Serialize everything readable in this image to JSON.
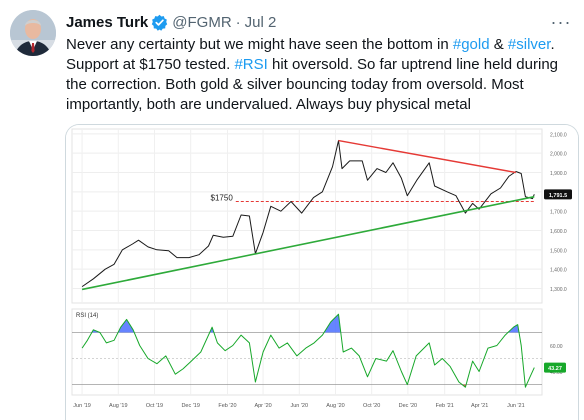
{
  "tweet": {
    "author_name": "James Turk",
    "handle": "@FGMR",
    "separator": "·",
    "date": "Jul 2",
    "more_label": "···",
    "text": [
      {
        "t": "Never any certainty but we might have seen the bottom in ",
        "ht": false
      },
      {
        "t": "#gold",
        "ht": true
      },
      {
        "t": " & ",
        "ht": false
      },
      {
        "t": "#silver",
        "ht": true
      },
      {
        "t": ". Support at $1750 tested. ",
        "ht": false
      },
      {
        "t": "#RSI",
        "ht": true
      },
      {
        "t": " hit oversold. So far uptrend line held during the correction. Both gold & silver bouncing today from oversold. Most importantly, both are undervalued. Always buy physical metal",
        "ht": false
      }
    ]
  },
  "colors": {
    "hashtag": "#1d9bf0",
    "price_line": "#1a1a1a",
    "downtrend": "#e53935",
    "uptrend": "#2eaa3a",
    "support": "#e53935",
    "rsi_line": "#17a82a",
    "rsi_fill": "#4b6fff",
    "rsi_oversold": "#e53935"
  },
  "chart_data": [
    {
      "type": "line",
      "series": [
        {
          "name": "",
          "points": [
            [
              "2019-06-01",
              1310
            ],
            [
              "2019-06-20",
              1350
            ],
            [
              "2019-07-10",
              1400
            ],
            [
              "2019-07-25",
              1425
            ],
            [
              "2019-08-08",
              1500
            ],
            [
              "2019-08-25",
              1530
            ],
            [
              "2019-09-04",
              1550
            ],
            [
              "2019-09-20",
              1515
            ],
            [
              "2019-10-05",
              1500
            ],
            [
              "2019-10-25",
              1495
            ],
            [
              "2019-11-08",
              1460
            ],
            [
              "2019-11-28",
              1460
            ],
            [
              "2019-12-15",
              1475
            ],
            [
              "2019-12-31",
              1520
            ],
            [
              "2020-01-08",
              1575
            ],
            [
              "2020-01-25",
              1565
            ],
            [
              "2020-02-10",
              1570
            ],
            [
              "2020-02-24",
              1680
            ],
            [
              "2020-03-09",
              1675
            ],
            [
              "2020-03-19",
              1480
            ],
            [
              "2020-04-01",
              1590
            ],
            [
              "2020-04-14",
              1725
            ],
            [
              "2020-05-01",
              1700
            ],
            [
              "2020-05-18",
              1750
            ],
            [
              "2020-06-05",
              1690
            ],
            [
              "2020-06-25",
              1770
            ],
            [
              "2020-07-10",
              1800
            ],
            [
              "2020-07-27",
              1930
            ],
            [
              "2020-08-06",
              2065
            ],
            [
              "2020-08-12",
              1920
            ],
            [
              "2020-08-25",
              1960
            ],
            [
              "2020-09-15",
              1960
            ],
            [
              "2020-09-24",
              1860
            ],
            [
              "2020-10-10",
              1920
            ],
            [
              "2020-10-25",
              1900
            ],
            [
              "2020-11-06",
              1950
            ],
            [
              "2020-11-20",
              1870
            ],
            [
              "2020-11-30",
              1780
            ],
            [
              "2020-12-16",
              1860
            ],
            [
              "2021-01-06",
              1950
            ],
            [
              "2021-01-15",
              1830
            ],
            [
              "2021-02-05",
              1800
            ],
            [
              "2021-02-20",
              1780
            ],
            [
              "2021-03-08",
              1690
            ],
            [
              "2021-03-20",
              1740
            ],
            [
              "2021-03-31",
              1710
            ],
            [
              "2021-04-20",
              1790
            ],
            [
              "2021-05-06",
              1820
            ],
            [
              "2021-05-20",
              1880
            ],
            [
              "2021-06-01",
              1905
            ],
            [
              "2021-06-10",
              1895
            ],
            [
              "2021-06-17",
              1775
            ],
            [
              "2021-06-29",
              1765
            ],
            [
              "2021-07-02",
              1787
            ]
          ]
        }
      ],
      "annotations": [
        {
          "type": "text",
          "text": "$1750",
          "x": "2020-02-15",
          "y": 1750
        },
        {
          "type": "trendline",
          "name": "downtrend",
          "from": [
            "2020-08-06",
            2065
          ],
          "to": [
            "2021-06-01",
            1900
          ]
        },
        {
          "type": "trendline",
          "name": "uptrend",
          "from": [
            "2019-06-01",
            1295
          ],
          "to": [
            "2021-07-02",
            1775
          ]
        },
        {
          "type": "hline",
          "name": "support",
          "y": 1750,
          "from": "2020-02-15",
          "to": "2021-07-02"
        }
      ],
      "last_value_label": "1,791.5",
      "xlim": [
        "2019-05-15",
        "2021-07-15"
      ],
      "ylim": [
        1225,
        2125
      ],
      "yticks": [
        1300,
        1400,
        1500,
        1600,
        1700,
        1800,
        1900,
        2000,
        2100
      ],
      "ytick_labels": [
        "1,300.0",
        "1,400.0",
        "1,500.0",
        "1,600.0",
        "1,700.0",
        "1,800.0",
        "1,900.0",
        "2,000.0",
        "2,100.0"
      ],
      "grid": true
    },
    {
      "type": "line",
      "title": "RSI (14)",
      "series": [
        {
          "name": "",
          "points": [
            [
              "2019-06-01",
              58
            ],
            [
              "2019-06-10",
              64
            ],
            [
              "2019-06-20",
              72
            ],
            [
              "2019-07-01",
              70
            ],
            [
              "2019-07-12",
              62
            ],
            [
              "2019-07-25",
              64
            ],
            [
              "2019-08-05",
              74
            ],
            [
              "2019-08-15",
              80
            ],
            [
              "2019-08-26",
              72
            ],
            [
              "2019-09-06",
              60
            ],
            [
              "2019-09-20",
              50
            ],
            [
              "2019-10-05",
              46
            ],
            [
              "2019-10-20",
              52
            ],
            [
              "2019-11-05",
              38
            ],
            [
              "2019-11-18",
              42
            ],
            [
              "2019-12-02",
              48
            ],
            [
              "2019-12-18",
              55
            ],
            [
              "2020-01-06",
              74
            ],
            [
              "2020-01-15",
              62
            ],
            [
              "2020-01-28",
              56
            ],
            [
              "2020-02-10",
              60
            ],
            [
              "2020-02-24",
              68
            ],
            [
              "2020-03-09",
              62
            ],
            [
              "2020-03-19",
              32
            ],
            [
              "2020-04-01",
              55
            ],
            [
              "2020-04-14",
              68
            ],
            [
              "2020-04-28",
              58
            ],
            [
              "2020-05-12",
              62
            ],
            [
              "2020-05-28",
              52
            ],
            [
              "2020-06-12",
              58
            ],
            [
              "2020-06-26",
              62
            ],
            [
              "2020-07-10",
              68
            ],
            [
              "2020-07-24",
              78
            ],
            [
              "2020-08-06",
              84
            ],
            [
              "2020-08-14",
              55
            ],
            [
              "2020-08-28",
              58
            ],
            [
              "2020-09-10",
              52
            ],
            [
              "2020-09-24",
              36
            ],
            [
              "2020-10-08",
              50
            ],
            [
              "2020-10-26",
              48
            ],
            [
              "2020-11-06",
              56
            ],
            [
              "2020-11-20",
              40
            ],
            [
              "2020-11-30",
              30
            ],
            [
              "2020-12-15",
              52
            ],
            [
              "2021-01-06",
              62
            ],
            [
              "2021-01-15",
              45
            ],
            [
              "2021-01-28",
              50
            ],
            [
              "2021-02-10",
              44
            ],
            [
              "2021-02-25",
              32
            ],
            [
              "2021-03-08",
              28
            ],
            [
              "2021-03-20",
              48
            ],
            [
              "2021-03-31",
              40
            ],
            [
              "2021-04-15",
              58
            ],
            [
              "2021-04-30",
              60
            ],
            [
              "2021-05-14",
              68
            ],
            [
              "2021-05-28",
              74
            ],
            [
              "2021-06-04",
              76
            ],
            [
              "2021-06-10",
              60
            ],
            [
              "2021-06-17",
              28
            ],
            [
              "2021-06-24",
              35
            ],
            [
              "2021-07-02",
              43
            ]
          ]
        }
      ],
      "value_label": "43.27",
      "xlim": [
        "2019-05-15",
        "2021-07-15"
      ],
      "ylim": [
        22,
        88
      ],
      "overbought": 70,
      "oversold": 30,
      "mid": 50,
      "ytick_labels": [
        {
          "v": 60,
          "label": "60.00"
        },
        {
          "v": 40,
          "label": "40.00"
        }
      ],
      "xticks": [
        "Jun '19",
        "Aug '19",
        "Oct '19",
        "Dec '19",
        "Feb '20",
        "Apr '20",
        "Jun '20",
        "Aug '20",
        "Oct '20",
        "Dec '20",
        "Feb '21",
        "Apr '21",
        "Jun '21"
      ],
      "xtick_dates": [
        "2019-06-01",
        "2019-08-01",
        "2019-10-01",
        "2019-12-01",
        "2020-02-01",
        "2020-04-01",
        "2020-06-01",
        "2020-08-01",
        "2020-10-01",
        "2020-12-01",
        "2021-02-01",
        "2021-04-01",
        "2021-06-01"
      ]
    }
  ]
}
